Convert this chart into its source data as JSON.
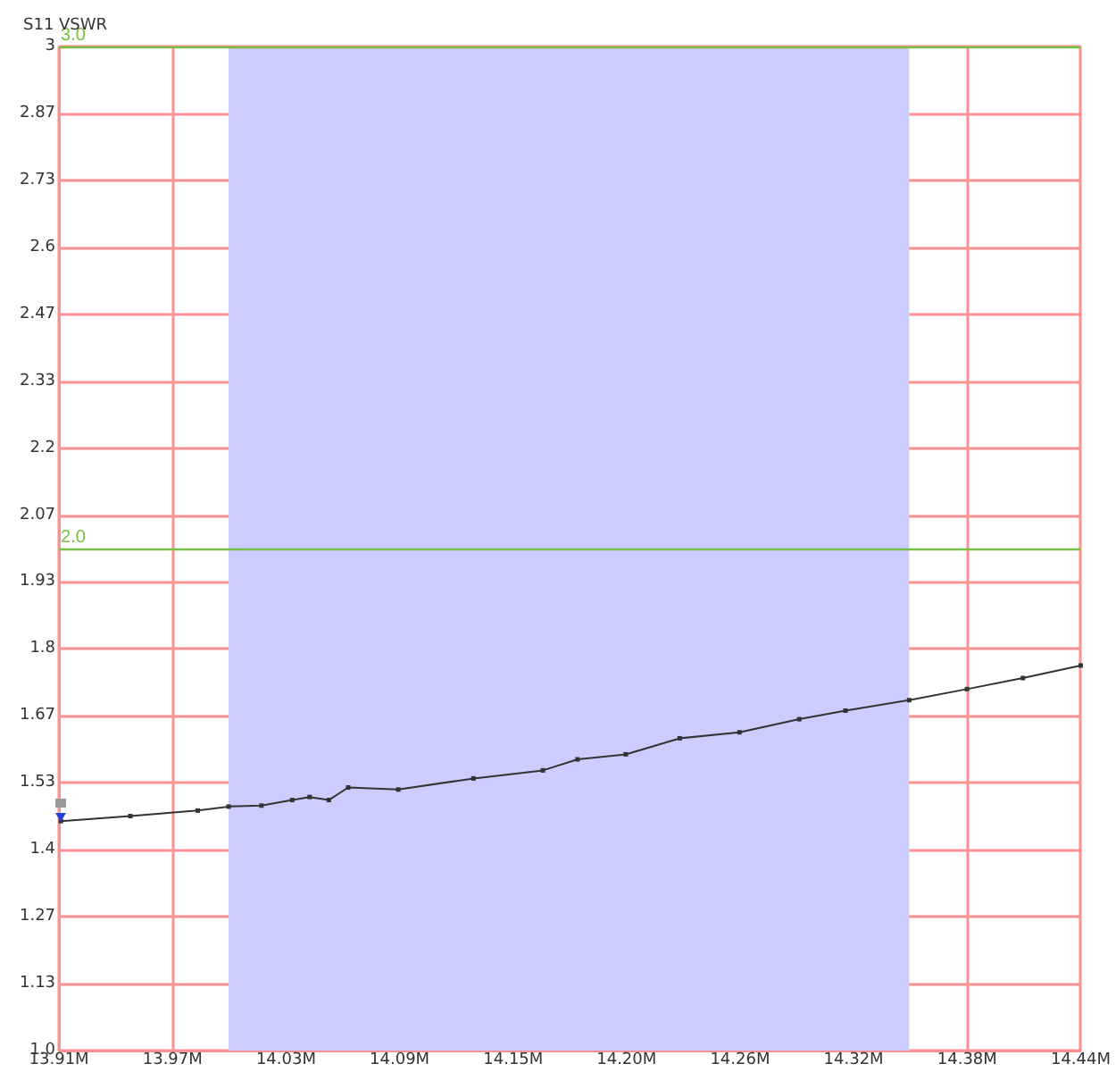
{
  "chart_data": {
    "type": "line",
    "title": "S11 VSWR",
    "x": [
      13.911,
      13.947,
      13.982,
      13.998,
      14.015,
      14.031,
      14.04,
      14.05,
      14.06,
      14.086,
      14.125,
      14.161,
      14.179,
      14.204,
      14.232,
      14.263,
      14.294,
      14.318,
      14.351,
      14.381,
      14.41,
      14.44
    ],
    "series": [
      {
        "color": "#333333",
        "values": [
          1.457,
          1.467,
          1.478,
          1.486,
          1.488,
          1.499,
          1.505,
          1.499,
          1.524,
          1.52,
          1.542,
          1.558,
          1.58,
          1.59,
          1.622,
          1.634,
          1.66,
          1.677,
          1.698,
          1.72,
          1.742,
          1.767
        ]
      }
    ],
    "marker": "square",
    "line_style": "solid",
    "xlim": [
      13.91,
      14.44
    ],
    "xticks": [
      {
        "value": 13.91,
        "label": "13.91M"
      },
      {
        "value": 13.9689,
        "label": "13.97M"
      },
      {
        "value": 14.0278,
        "label": "14.03M"
      },
      {
        "value": 14.0867,
        "label": "14.09M"
      },
      {
        "value": 14.1456,
        "label": "14.15M"
      },
      {
        "value": 14.2044,
        "label": "14.20M"
      },
      {
        "value": 14.2633,
        "label": "14.26M"
      },
      {
        "value": 14.3222,
        "label": "14.32M"
      },
      {
        "value": 14.3811,
        "label": "14.38M"
      },
      {
        "value": 14.44,
        "label": "14.44M"
      }
    ],
    "ylim": [
      1.0,
      3.0
    ],
    "yticks": [
      {
        "value": 1.0,
        "label": "1.0"
      },
      {
        "value": 1.1333,
        "label": "1.13"
      },
      {
        "value": 1.2667,
        "label": "1.27"
      },
      {
        "value": 1.4,
        "label": "1.4"
      },
      {
        "value": 1.5333,
        "label": "1.53"
      },
      {
        "value": 1.6667,
        "label": "1.67"
      },
      {
        "value": 1.8,
        "label": "1.8"
      },
      {
        "value": 1.9333,
        "label": "1.93"
      },
      {
        "value": 2.0667,
        "label": "2.07"
      },
      {
        "value": 2.2,
        "label": "2.2"
      },
      {
        "value": 2.3333,
        "label": "2.33"
      },
      {
        "value": 2.4667,
        "label": "2.47"
      },
      {
        "value": 2.6,
        "label": "2.6"
      },
      {
        "value": 2.7333,
        "label": "2.73"
      },
      {
        "value": 2.8667,
        "label": "2.87"
      },
      {
        "value": 3,
        "label": "3"
      }
    ],
    "grid": true,
    "ref_lines": [
      {
        "axis": "y",
        "value": 3.0,
        "label": "3.0",
        "color": "#77c043"
      },
      {
        "axis": "y",
        "value": 2.0,
        "label": "2.0",
        "color": "#77c043"
      }
    ],
    "bands": [
      {
        "axis": "x",
        "from": 13.998,
        "to": 14.351,
        "color": "#ccccff"
      }
    ]
  }
}
